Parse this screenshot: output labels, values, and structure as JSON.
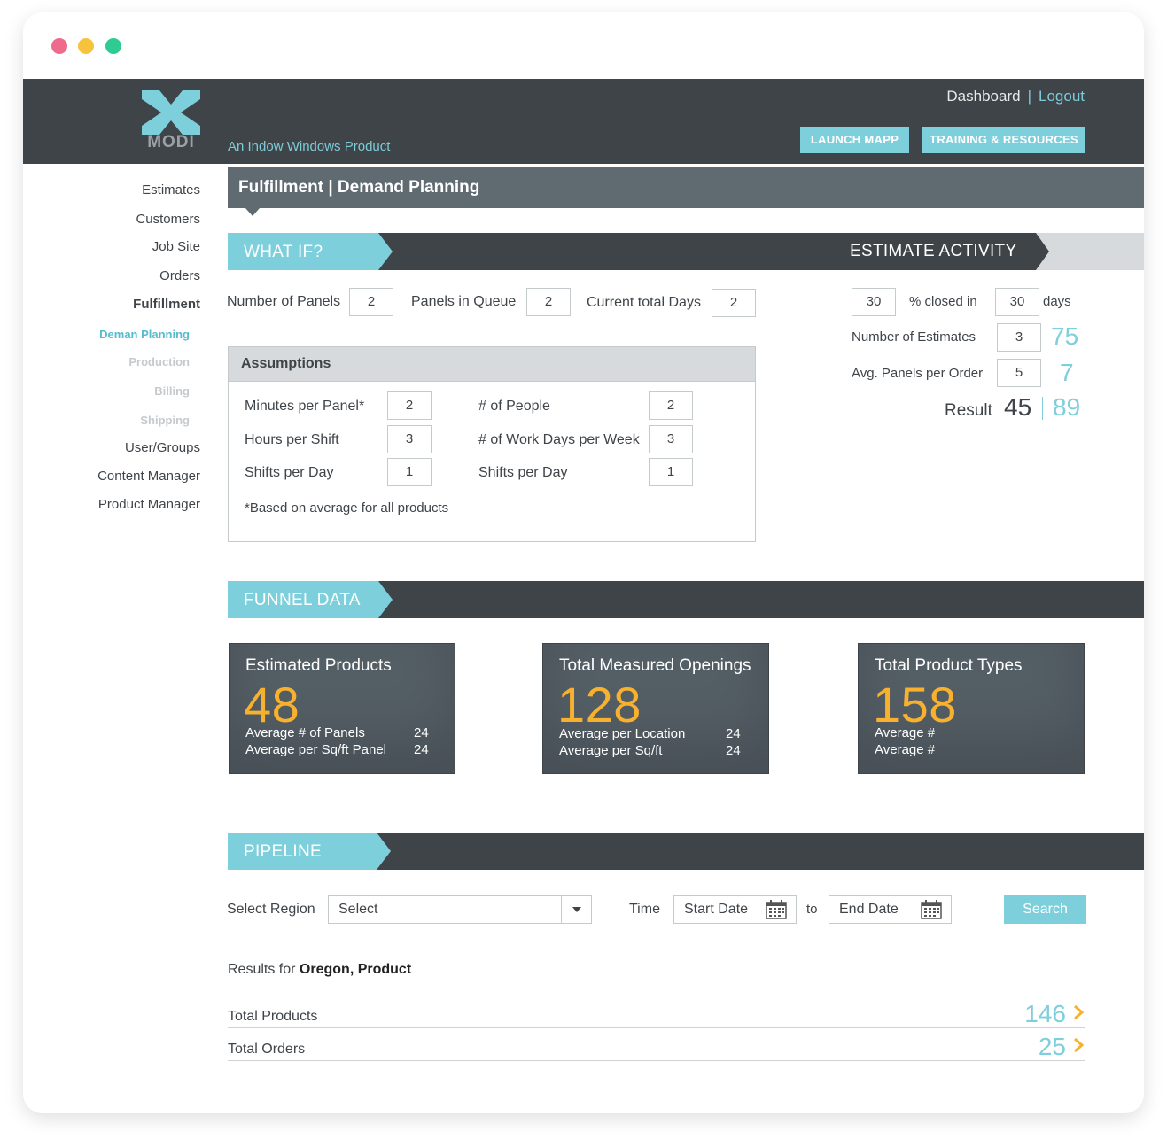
{
  "header": {
    "logo_text": "MODI",
    "tagline": "An Indow Windows Product",
    "dashboard_link": "Dashboard",
    "separator": "|",
    "logout_link": "Logout",
    "launch_button": "LAUNCH MAPP",
    "training_button": "TRAINING & RESOURCES"
  },
  "sidebar": {
    "items": [
      "Estimates",
      "Customers",
      "Job Site",
      "Orders",
      "Fulfillment",
      "Deman Planning",
      "Production",
      "Billing",
      "Shipping",
      "User/Groups",
      "Content Manager",
      "Product Manager"
    ]
  },
  "page_title": "Fulfillment | Demand Planning",
  "whatif": {
    "tab_label": "WHAT IF?",
    "number_of_panels_label": "Number of Panels",
    "number_of_panels_value": "2",
    "panels_in_queue_label": "Panels in Queue",
    "panels_in_queue_value": "2",
    "current_total_days_label": "Current total Days",
    "current_total_days_value": "2"
  },
  "assumptions": {
    "title": "Assumptions",
    "minutes_per_panel_label": "Minutes per Panel*",
    "minutes_per_panel_value": "2",
    "hours_per_shift_label": "Hours per Shift",
    "hours_per_shift_value": "3",
    "shifts_per_day_label": "Shifts per Day",
    "shifts_per_day_value": "1",
    "num_people_label": "# of People",
    "num_people_value": "2",
    "work_days_label": "# of Work Days per Week",
    "work_days_value": "3",
    "shifts_per_day_2_label": "Shifts per Day",
    "shifts_per_day_2_value": "1",
    "footnote": "*Based on average for all products"
  },
  "estimate_activity": {
    "tab_label": "ESTIMATE ACTIVITY",
    "pct_value": "30",
    "pct_closed_label": "% closed in",
    "days_value": "30",
    "days_label": "days",
    "num_estimates_label": "Number of Estimates",
    "num_estimates_value": "3",
    "num_estimates_result": "75",
    "avg_panels_label": "Avg. Panels per Order",
    "avg_panels_value": "5",
    "avg_panels_result": "7",
    "result_label": "Result",
    "result_value": "45",
    "result_teal": "89"
  },
  "funnel": {
    "tab_label": "FUNNEL DATA",
    "cards": [
      {
        "title": "Estimated Products",
        "number": "48",
        "row1_label": "Average # of Panels",
        "row1_value": "24",
        "row2_label": "Average per Sq/ft Panel",
        "row2_value": "24"
      },
      {
        "title": "Total Measured Openings",
        "number": "128",
        "row1_label": "Average per Location",
        "row1_value": "24",
        "row2_label": "Average per Sq/ft",
        "row2_value": "24"
      },
      {
        "title": "Total Product Types",
        "number": "158",
        "row1_label": "Average #",
        "row1_value": "",
        "row2_label": "Average #",
        "row2_value": ""
      }
    ]
  },
  "pipeline": {
    "tab_label": "PIPELINE",
    "region_label": "Select Region",
    "region_select_value": "Select",
    "time_label": "Time",
    "start_date_placeholder": "Start Date",
    "to_label": "to",
    "end_date_placeholder": "End Date",
    "search_button": "Search",
    "results_prefix": "Results for ",
    "results_query": "Oregon, Product",
    "rows": [
      {
        "label": "Total Products",
        "value": "146"
      },
      {
        "label": "Total Orders",
        "value": "25"
      }
    ]
  },
  "colors": {
    "accent_teal": "#7ecfdc",
    "dark_bar": "#3f4448",
    "card_bg": "#545e65",
    "highlight_orange": "#f7b12f"
  }
}
